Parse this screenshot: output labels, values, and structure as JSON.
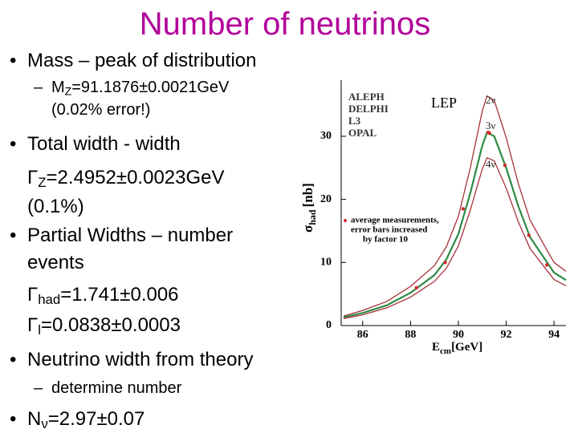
{
  "title": "Number of neutrinos",
  "bullets": [
    {
      "level": 1,
      "marker": "•",
      "lines": [
        [
          {
            "t": "Mass – peak of distribution"
          }
        ]
      ]
    },
    {
      "level": 2,
      "marker": "–",
      "lines": [
        [
          {
            "t": "M"
          },
          {
            "t": "Z",
            "sub": true
          },
          {
            "t": "=91.1876±0.0021GeV"
          }
        ],
        [
          {
            "t": "(0.02% error!)"
          }
        ]
      ]
    },
    {
      "level": 1,
      "marker": "•",
      "lines": [
        [
          {
            "t": "Total width - width"
          }
        ],
        [
          {
            "t": "Γ"
          },
          {
            "t": "Z",
            "sub": true
          },
          {
            "t": "=2.4952±0.0023GeV"
          }
        ],
        [
          {
            "t": "(0.1%)"
          }
        ]
      ]
    },
    {
      "level": 1,
      "marker": "•",
      "lines": [
        [
          {
            "t": "Partial Widths – number"
          }
        ],
        [
          {
            "t": "events"
          }
        ],
        [
          {
            "t": "Γ"
          },
          {
            "t": "had",
            "sub": true
          },
          {
            "t": "=1.741±0.006"
          }
        ],
        [
          {
            "t": "Γ"
          },
          {
            "t": "l",
            "sub": true
          },
          {
            "t": "=0.0838±0.0003"
          }
        ]
      ]
    },
    {
      "level": 1,
      "marker": "•",
      "lines": [
        [
          {
            "t": "Neutrino width from theory"
          }
        ]
      ]
    },
    {
      "level": 2,
      "marker": "–",
      "lines": [
        [
          {
            "t": "determine number"
          }
        ]
      ]
    },
    {
      "level": 1,
      "marker": "•",
      "lines": [
        [
          {
            "t": "N"
          },
          {
            "t": "ν",
            "sub": true
          },
          {
            "t": "=2.97±0.07"
          }
        ]
      ]
    }
  ],
  "chart_data": {
    "type": "line",
    "experiments": [
      "ALEPH",
      "DELPHI",
      "L3",
      "OPAL"
    ],
    "collider": "LEP",
    "annotation": [
      "average measurements,",
      "error bars increased",
      "by factor 10"
    ],
    "x_label": {
      "main": "E",
      "sub": "cm",
      "unit": "[GeV]"
    },
    "y_label": {
      "main": "σ",
      "sub": "had",
      "unit": "[nb]"
    },
    "x": [
      85.2,
      86,
      87,
      88,
      89,
      89.5,
      90,
      90.5,
      91,
      91.2,
      91.5,
      92,
      92.5,
      93,
      94,
      94.5
    ],
    "series": [
      {
        "name": "2ν",
        "color": "#a8323a",
        "values": [
          1.5,
          2.4,
          3.8,
          6.2,
          9.5,
          12.5,
          17.3,
          25,
          34,
          36.4,
          35.7,
          29.8,
          22.6,
          16.7,
          10,
          8.6
        ]
      },
      {
        "name": "3ν",
        "color": "#2e8b45",
        "values": [
          1.3,
          2.0,
          3.2,
          5.2,
          8.0,
          10.5,
          14.5,
          21,
          28.5,
          30.6,
          30,
          25,
          19,
          14,
          8.4,
          7.2
        ]
      },
      {
        "name": "4ν",
        "color": "#a8323a",
        "values": [
          1.1,
          1.7,
          2.8,
          4.5,
          7.0,
          9.1,
          12.6,
          18.3,
          24.8,
          26.6,
          26.1,
          21.8,
          16.5,
          12.2,
          7.3,
          6.3
        ]
      }
    ],
    "points": {
      "color": "#d42a2a",
      "x": [
        88.25,
        89.45,
        90.2,
        91.25,
        91.3,
        91.95,
        92.95,
        93.7
      ],
      "values": [
        6,
        10,
        18.5,
        30.6,
        30.5,
        25.4,
        14.3,
        9.6
      ]
    },
    "xlim": [
      85.1,
      94.5
    ],
    "ylim": [
      0,
      38
    ],
    "xticks": [
      86,
      88,
      90,
      92,
      94
    ],
    "yticks": [
      0,
      10,
      20,
      30
    ]
  }
}
